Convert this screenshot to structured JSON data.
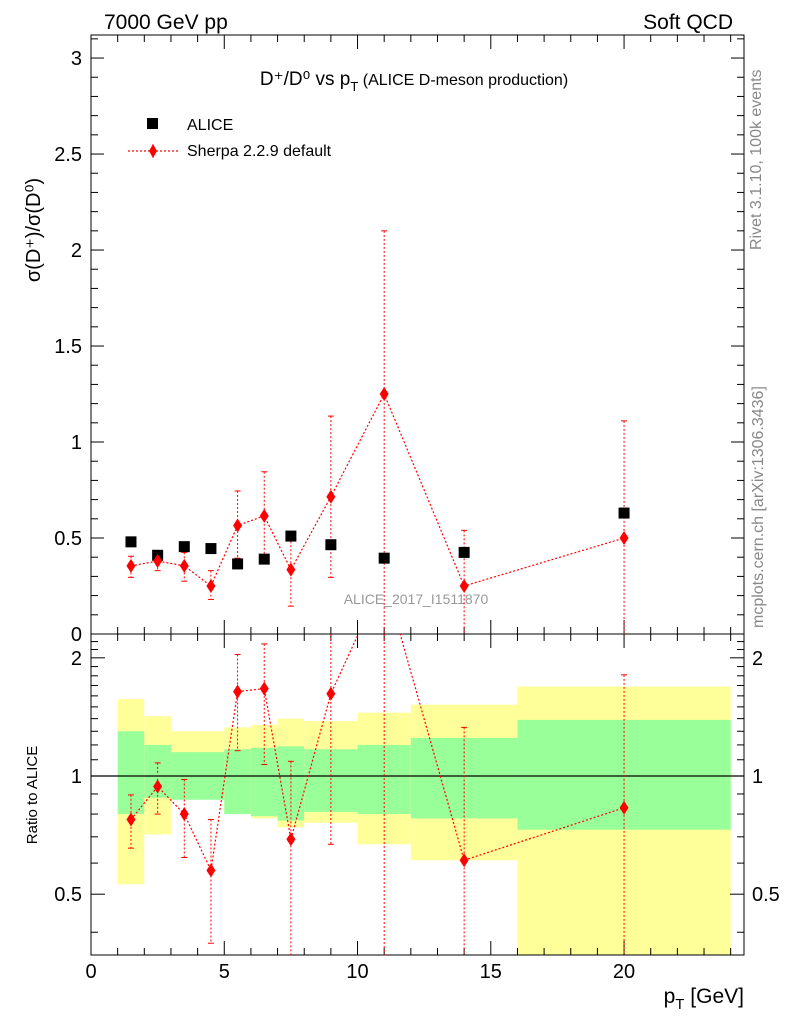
{
  "header": {
    "energy_label": "7000 GeV pp",
    "process_label": "Soft QCD"
  },
  "side": {
    "rivet_label": "Rivet 3.1.10,  100k events",
    "source_label": "mcplots.cern.ch [arXiv:1306.3436]"
  },
  "watermark": "ALICE_2017_I1511870",
  "chart_data": {
    "type": "scatter",
    "title": {
      "main": "D⁺/D⁰ vs p",
      "sub": "T",
      "suffix": " (ALICE D-meson production)"
    },
    "ylabel_main": "σ(D⁺)/σ(D⁰)",
    "ylabel_ratio": "Ratio to ALICE",
    "xlabel": {
      "main": "p",
      "sub": "T",
      "suffix": " [GeV]"
    },
    "xlim": [
      0,
      24.5
    ],
    "ylim_main": [
      0,
      3.12
    ],
    "ylim_ratio": [
      0.35,
      2.3
    ],
    "x_ticks": [
      "0",
      "5",
      "10",
      "15",
      "20"
    ],
    "y_ticks_main": [
      "0",
      "0.5",
      "1",
      "1.5",
      "2",
      "2.5",
      "3"
    ],
    "y_ticks_ratio": [
      "0.5",
      "1",
      "2"
    ],
    "legend_position": "top-left",
    "series": [
      {
        "name": "ALICE",
        "marker": "square",
        "color": "#000000",
        "x": [
          1.5,
          2.5,
          3.5,
          4.5,
          5.5,
          6.5,
          7.5,
          9.0,
          11.0,
          14.0,
          20.0
        ],
        "y": [
          0.48,
          0.41,
          0.455,
          0.445,
          0.365,
          0.39,
          0.51,
          0.465,
          0.395,
          0.425,
          0.63
        ],
        "yerr": [
          0.02,
          0.02,
          0.02,
          0.02,
          0.02,
          0.02,
          0.02,
          0.02,
          0.02,
          0.02,
          0.03
        ]
      },
      {
        "name": "Sherpa 2.2.9 default",
        "marker": "diamond",
        "color": "#ff0000",
        "x": [
          1.5,
          2.5,
          3.5,
          4.5,
          5.5,
          6.5,
          7.5,
          9.0,
          11.0,
          14.0,
          20.0
        ],
        "y": [
          0.355,
          0.38,
          0.355,
          0.25,
          0.565,
          0.615,
          0.335,
          0.715,
          1.25,
          0.25,
          0.5
        ],
        "yerr_low": [
          0.06,
          0.05,
          0.08,
          0.07,
          0.17,
          0.21,
          0.19,
          0.42,
          1.25,
          0.25,
          0.5
        ],
        "yerr_high": [
          0.05,
          0.05,
          0.07,
          0.08,
          0.18,
          0.23,
          0.19,
          0.42,
          0.85,
          0.29,
          0.61
        ]
      }
    ],
    "ratio": {
      "reference_line": 1.0,
      "points": {
        "x": [
          1.5,
          2.5,
          3.5,
          4.5,
          5.5,
          6.5,
          7.5,
          9.0,
          11.0,
          14.0,
          20.0
        ],
        "y": [
          0.775,
          0.94,
          0.8,
          0.575,
          1.64,
          1.67,
          0.69,
          1.62,
          3.2,
          0.61,
          0.83
        ],
        "err_low": [
          0.12,
          0.14,
          0.18,
          0.2,
          0.48,
          0.6,
          0.4,
          0.95,
          3.2,
          0.61,
          0.83
        ],
        "err_high": [
          0.12,
          0.14,
          0.18,
          0.2,
          0.4,
          0.5,
          0.4,
          0.95,
          1.5,
          0.72,
          0.98
        ]
      },
      "bands": [
        {
          "x0": 1.0,
          "x1": 2.0,
          "inner": [
            0.8,
            1.3
          ],
          "outer": [
            0.53,
            1.57
          ]
        },
        {
          "x0": 2.0,
          "x1": 3.0,
          "inner": [
            0.88,
            1.2
          ],
          "outer": [
            0.71,
            1.42
          ]
        },
        {
          "x0": 3.0,
          "x1": 4.0,
          "inner": [
            0.87,
            1.15
          ],
          "outer": [
            0.91,
            1.3
          ]
        },
        {
          "x0": 4.0,
          "x1": 5.0,
          "inner": [
            0.87,
            1.15
          ],
          "outer": [
            0.91,
            1.3
          ]
        },
        {
          "x0": 5.0,
          "x1": 6.0,
          "inner": [
            0.8,
            1.17
          ],
          "outer": [
            0.8,
            1.33
          ]
        },
        {
          "x0": 6.0,
          "x1": 7.0,
          "inner": [
            0.79,
            1.18
          ],
          "outer": [
            0.78,
            1.35
          ]
        },
        {
          "x0": 7.0,
          "x1": 8.0,
          "inner": [
            0.77,
            1.19
          ],
          "outer": [
            0.74,
            1.4
          ]
        },
        {
          "x0": 8.0,
          "x1": 10.0,
          "inner": [
            0.81,
            1.17
          ],
          "outer": [
            0.76,
            1.38
          ]
        },
        {
          "x0": 10.0,
          "x1": 12.0,
          "inner": [
            0.8,
            1.2
          ],
          "outer": [
            0.67,
            1.45
          ]
        },
        {
          "x0": 12.0,
          "x1": 16.0,
          "inner": [
            0.78,
            1.25
          ],
          "outer": [
            0.61,
            1.52
          ]
        },
        {
          "x0": 16.0,
          "x1": 24.0,
          "inner": [
            0.73,
            1.39
          ],
          "outer": [
            0.35,
            1.69
          ]
        }
      ],
      "band_colors": {
        "inner": "#99ff99",
        "outer": "#ffff99"
      }
    }
  }
}
